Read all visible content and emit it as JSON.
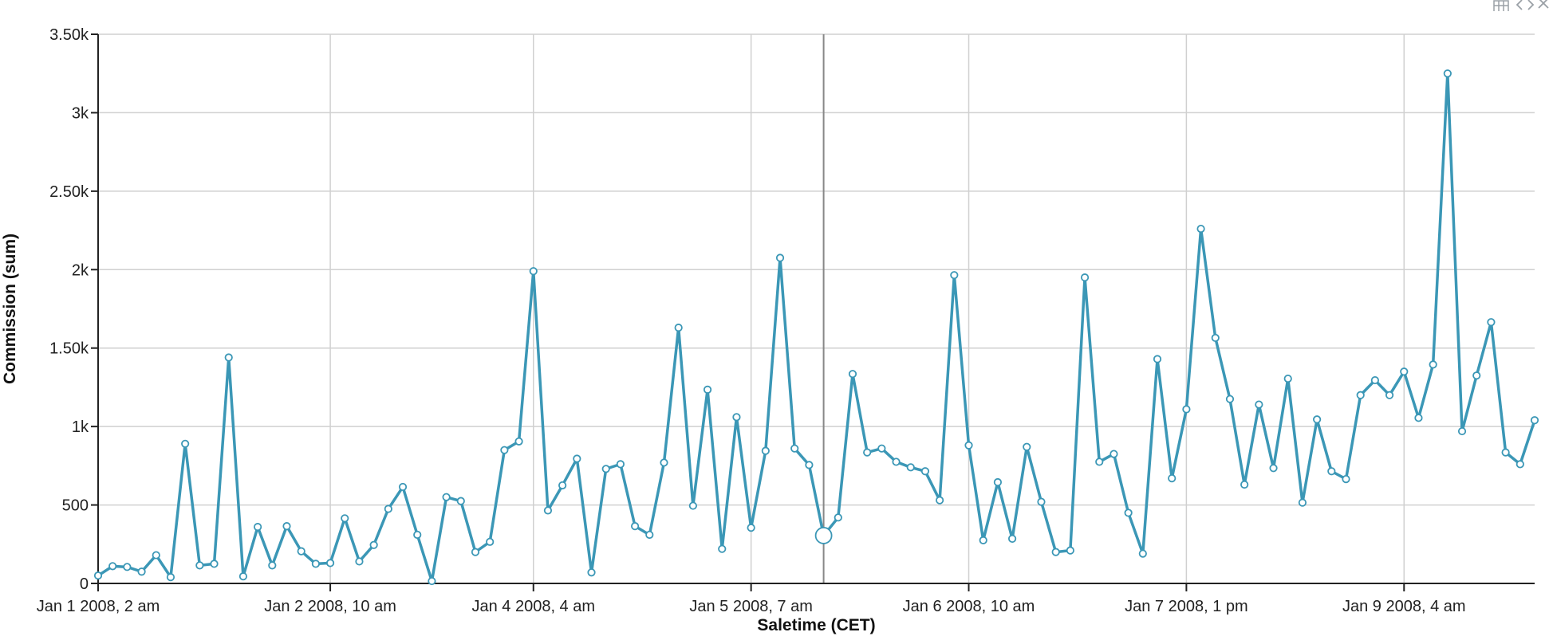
{
  "chart_data": {
    "type": "line",
    "xlabel": "Saletime (CET)",
    "ylabel": "Commission (sum)",
    "ylim": [
      0,
      3500
    ],
    "y_ticks": [
      0,
      500,
      1000,
      1500,
      2000,
      2500,
      3000,
      3500
    ],
    "y_tick_labels": [
      "0",
      "500",
      "1k",
      "1.50k",
      "2k",
      "2.50k",
      "3k",
      "3.50k"
    ],
    "x_tick_labels": [
      "Jan 1 2008, 2 am",
      "Jan 2 2008, 10 am",
      "Jan 4 2008, 4 am",
      "Jan 5 2008, 7 am",
      "Jan 6 2008, 10 am",
      "Jan 7 2008, 1 pm",
      "Jan 9 2008, 4 am"
    ],
    "x_tick_positions": [
      0,
      16,
      30,
      45,
      60,
      75,
      90
    ],
    "grid": true,
    "series_color": "#3b97b6",
    "highlight_index": 50,
    "series": [
      {
        "values": [
          50,
          110,
          105,
          75,
          180,
          40,
          890,
          115,
          125,
          1440,
          45,
          360,
          115,
          365,
          205,
          125,
          130,
          415,
          140,
          245,
          475,
          615,
          310,
          15,
          550,
          525,
          200,
          265,
          850,
          905,
          1990,
          465,
          625,
          795,
          70,
          730,
          760,
          365,
          310,
          770,
          1630,
          495,
          1235,
          220,
          1060,
          355,
          845,
          2075,
          860,
          755,
          305,
          420,
          1335,
          835,
          860,
          775,
          740,
          715,
          530,
          1965,
          880,
          275,
          645,
          285,
          870,
          520,
          200,
          210,
          1950,
          775,
          825,
          450,
          190,
          1430,
          670,
          1110,
          2260,
          1565,
          1175,
          630,
          1140,
          735,
          1305,
          515,
          1045,
          715,
          665,
          1200,
          1295,
          1200,
          1350,
          1055,
          1395,
          3250,
          970,
          1325,
          1665,
          835,
          760,
          1040
        ]
      }
    ]
  }
}
